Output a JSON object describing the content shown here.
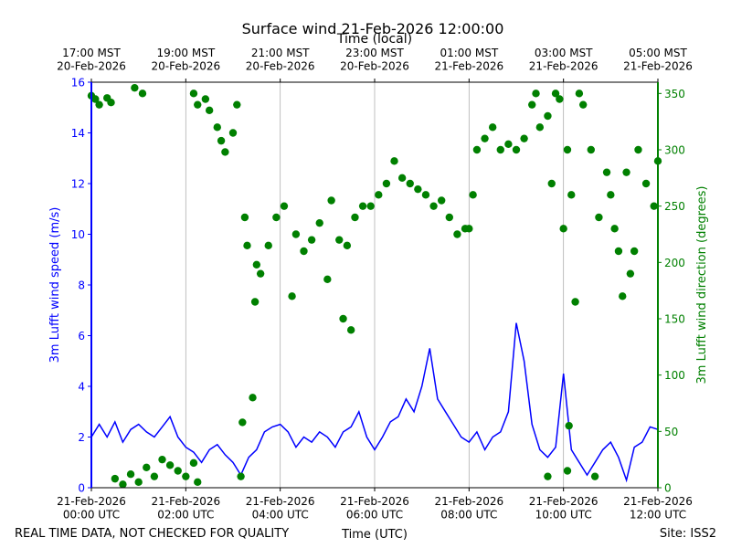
{
  "chart_data": {
    "type": "line",
    "title": "Surface wind 21-Feb-2026 12:00:00",
    "xlabel": "Time (UTC)",
    "x2label": "Time (local)",
    "ylabel": "3m Lufft wind speed (m/s)",
    "y2label": "3m Lufft wind direction (degrees)",
    "footnote_left": "REAL TIME DATA, NOT CHECKED FOR QUALITY",
    "footnote_right": "Site: ISS2",
    "grid": true,
    "xlim": [
      "2026-02-21T00:00",
      "2026-02-21T12:00"
    ],
    "xticks": [
      {
        "value": "2026-02-21T00:00",
        "label": "21-Feb-2026\n00:00 UTC"
      },
      {
        "value": "2026-02-21T02:00",
        "label": "21-Feb-2026\n02:00 UTC"
      },
      {
        "value": "2026-02-21T04:00",
        "label": "21-Feb-2026\n04:00 UTC"
      },
      {
        "value": "2026-02-21T06:00",
        "label": "21-Feb-2026\n06:00 UTC"
      },
      {
        "value": "2026-02-21T08:00",
        "label": "21-Feb-2026\n08:00 UTC"
      },
      {
        "value": "2026-02-21T10:00",
        "label": "21-Feb-2026\n10:00 UTC"
      },
      {
        "value": "2026-02-21T12:00",
        "label": "21-Feb-2026\n12:00 UTC"
      }
    ],
    "x2ticks": [
      {
        "value": "2026-02-21T00:00",
        "label": "17:00 MST\n20-Feb-2026"
      },
      {
        "value": "2026-02-21T02:00",
        "label": "19:00 MST\n20-Feb-2026"
      },
      {
        "value": "2026-02-21T04:00",
        "label": "21:00 MST\n20-Feb-2026"
      },
      {
        "value": "2026-02-21T06:00",
        "label": "23:00 MST\n20-Feb-2026"
      },
      {
        "value": "2026-02-21T08:00",
        "label": "01:00 MST\n21-Feb-2026"
      },
      {
        "value": "2026-02-21T10:00",
        "label": "03:00 MST\n21-Feb-2026"
      },
      {
        "value": "2026-02-21T12:00",
        "label": "05:00 MST\n21-Feb-2026"
      }
    ],
    "ylim": [
      0,
      16
    ],
    "yticks": [
      0,
      2,
      4,
      6,
      8,
      10,
      12,
      14,
      16
    ],
    "y2lim": [
      0,
      360
    ],
    "y2ticks": [
      0,
      50,
      100,
      150,
      200,
      250,
      300,
      350
    ],
    "series": [
      {
        "name": "3m Lufft wind speed",
        "kind": "line",
        "color": "#0000ff",
        "x": [
          "2026-02-21T00:00",
          "2026-02-21T00:10",
          "2026-02-21T00:20",
          "2026-02-21T00:30",
          "2026-02-21T00:40",
          "2026-02-21T00:50",
          "2026-02-21T01:00",
          "2026-02-21T01:10",
          "2026-02-21T01:20",
          "2026-02-21T01:30",
          "2026-02-21T01:40",
          "2026-02-21T01:50",
          "2026-02-21T02:00",
          "2026-02-21T02:10",
          "2026-02-21T02:20",
          "2026-02-21T02:30",
          "2026-02-21T02:40",
          "2026-02-21T02:50",
          "2026-02-21T03:00",
          "2026-02-21T03:10",
          "2026-02-21T03:20",
          "2026-02-21T03:30",
          "2026-02-21T03:40",
          "2026-02-21T03:50",
          "2026-02-21T04:00",
          "2026-02-21T04:10",
          "2026-02-21T04:20",
          "2026-02-21T04:30",
          "2026-02-21T04:40",
          "2026-02-21T04:50",
          "2026-02-21T05:00",
          "2026-02-21T05:10",
          "2026-02-21T05:20",
          "2026-02-21T05:30",
          "2026-02-21T05:40",
          "2026-02-21T05:50",
          "2026-02-21T06:00",
          "2026-02-21T06:10",
          "2026-02-21T06:20",
          "2026-02-21T06:30",
          "2026-02-21T06:40",
          "2026-02-21T06:50",
          "2026-02-21T07:00",
          "2026-02-21T07:10",
          "2026-02-21T07:20",
          "2026-02-21T07:30",
          "2026-02-21T07:40",
          "2026-02-21T07:50",
          "2026-02-21T08:00",
          "2026-02-21T08:10",
          "2026-02-21T08:20",
          "2026-02-21T08:30",
          "2026-02-21T08:40",
          "2026-02-21T08:50",
          "2026-02-21T09:00",
          "2026-02-21T09:10",
          "2026-02-21T09:20",
          "2026-02-21T09:30",
          "2026-02-21T09:40",
          "2026-02-21T09:50",
          "2026-02-21T10:00",
          "2026-02-21T10:10",
          "2026-02-21T10:20",
          "2026-02-21T10:30",
          "2026-02-21T10:40",
          "2026-02-21T10:50",
          "2026-02-21T11:00",
          "2026-02-21T11:10",
          "2026-02-21T11:20",
          "2026-02-21T11:30",
          "2026-02-21T11:40",
          "2026-02-21T11:50",
          "2026-02-21T12:00"
        ],
        "values": [
          2.0,
          2.5,
          2.0,
          2.6,
          1.8,
          2.3,
          2.5,
          2.2,
          2.0,
          2.4,
          2.8,
          2.0,
          1.6,
          1.4,
          1.0,
          1.5,
          1.7,
          1.3,
          1.0,
          0.5,
          1.2,
          1.5,
          2.2,
          2.4,
          2.5,
          2.2,
          1.6,
          2.0,
          1.8,
          2.2,
          2.0,
          1.6,
          2.2,
          2.4,
          3.0,
          2.0,
          1.5,
          2.0,
          2.6,
          2.8,
          3.5,
          3.0,
          4.0,
          5.5,
          3.5,
          3.0,
          2.5,
          2.0,
          1.8,
          2.2,
          1.5,
          2.0,
          2.2,
          3.0,
          6.5,
          5.0,
          2.5,
          1.5,
          1.2,
          1.6,
          4.5,
          1.5,
          1.0,
          0.5,
          1.0,
          1.5,
          1.8,
          1.2,
          0.3,
          1.6,
          1.8,
          2.4,
          2.3
        ]
      },
      {
        "name": "3m Lufft wind direction",
        "kind": "scatter",
        "axis": "y2",
        "color": "#008000",
        "x": [
          "2026-02-21T00:00",
          "2026-02-21T00:05",
          "2026-02-21T00:10",
          "2026-02-21T00:20",
          "2026-02-21T00:25",
          "2026-02-21T00:30",
          "2026-02-21T00:40",
          "2026-02-21T00:50",
          "2026-02-21T01:00",
          "2026-02-21T01:10",
          "2026-02-21T01:20",
          "2026-02-21T01:30",
          "2026-02-21T01:40",
          "2026-02-21T01:50",
          "2026-02-21T02:00",
          "2026-02-21T02:10",
          "2026-02-21T02:15",
          "2026-02-21T00:55",
          "2026-02-21T01:05",
          "2026-02-21T02:10",
          "2026-02-21T02:15",
          "2026-02-21T02:25",
          "2026-02-21T02:30",
          "2026-02-21T02:40",
          "2026-02-21T02:45",
          "2026-02-21T02:50",
          "2026-02-21T03:00",
          "2026-02-21T03:05",
          "2026-02-21T03:10",
          "2026-02-21T03:12",
          "2026-02-21T03:15",
          "2026-02-21T03:18",
          "2026-02-21T03:25",
          "2026-02-21T03:28",
          "2026-02-21T03:30",
          "2026-02-21T03:35",
          "2026-02-21T03:45",
          "2026-02-21T03:55",
          "2026-02-21T04:05",
          "2026-02-21T04:15",
          "2026-02-21T04:20",
          "2026-02-21T04:30",
          "2026-02-21T04:40",
          "2026-02-21T04:50",
          "2026-02-21T05:00",
          "2026-02-21T05:05",
          "2026-02-21T05:15",
          "2026-02-21T05:20",
          "2026-02-21T05:25",
          "2026-02-21T05:30",
          "2026-02-21T05:35",
          "2026-02-21T05:45",
          "2026-02-21T05:55",
          "2026-02-21T06:05",
          "2026-02-21T06:15",
          "2026-02-21T06:25",
          "2026-02-21T06:35",
          "2026-02-21T06:45",
          "2026-02-21T06:55",
          "2026-02-21T07:05",
          "2026-02-21T07:15",
          "2026-02-21T07:25",
          "2026-02-21T07:35",
          "2026-02-21T07:45",
          "2026-02-21T07:55",
          "2026-02-21T08:00",
          "2026-02-21T08:05",
          "2026-02-21T08:10",
          "2026-02-21T08:20",
          "2026-02-21T08:30",
          "2026-02-21T08:40",
          "2026-02-21T08:50",
          "2026-02-21T09:00",
          "2026-02-21T09:10",
          "2026-02-21T09:20",
          "2026-02-21T09:25",
          "2026-02-21T09:30",
          "2026-02-21T09:40",
          "2026-02-21T09:45",
          "2026-02-21T09:50",
          "2026-02-21T09:55",
          "2026-02-21T10:00",
          "2026-02-21T10:05",
          "2026-02-21T10:10",
          "2026-02-21T10:15",
          "2026-02-21T10:20",
          "2026-02-21T10:25",
          "2026-02-21T10:35",
          "2026-02-21T10:45",
          "2026-02-21T10:55",
          "2026-02-21T11:00",
          "2026-02-21T11:05",
          "2026-02-21T11:10",
          "2026-02-21T11:15",
          "2026-02-21T11:20",
          "2026-02-21T11:25",
          "2026-02-21T11:30",
          "2026-02-21T11:35",
          "2026-02-21T11:45",
          "2026-02-21T11:55",
          "2026-02-21T12:00",
          "2026-02-21T09:40",
          "2026-02-21T10:05",
          "2026-02-21T10:07",
          "2026-02-21T10:40"
        ],
        "values": [
          348,
          345,
          340,
          346,
          342,
          8,
          3,
          12,
          5,
          18,
          10,
          25,
          20,
          15,
          10,
          22,
          5,
          355,
          350,
          350,
          340,
          345,
          335,
          320,
          308,
          298,
          315,
          340,
          10,
          58,
          240,
          215,
          80,
          165,
          198,
          190,
          215,
          240,
          250,
          170,
          225,
          210,
          220,
          235,
          185,
          255,
          220,
          150,
          215,
          140,
          240,
          250,
          250,
          260,
          270,
          290,
          275,
          270,
          265,
          260,
          250,
          255,
          240,
          225,
          230,
          230,
          260,
          300,
          310,
          320,
          300,
          305,
          300,
          310,
          340,
          350,
          320,
          330,
          270,
          350,
          345,
          230,
          300,
          260,
          165,
          350,
          340,
          300,
          240,
          280,
          260,
          230,
          210,
          170,
          280,
          190,
          210,
          300,
          270,
          250,
          290,
          10,
          15,
          55,
          10
        ]
      }
    ]
  }
}
